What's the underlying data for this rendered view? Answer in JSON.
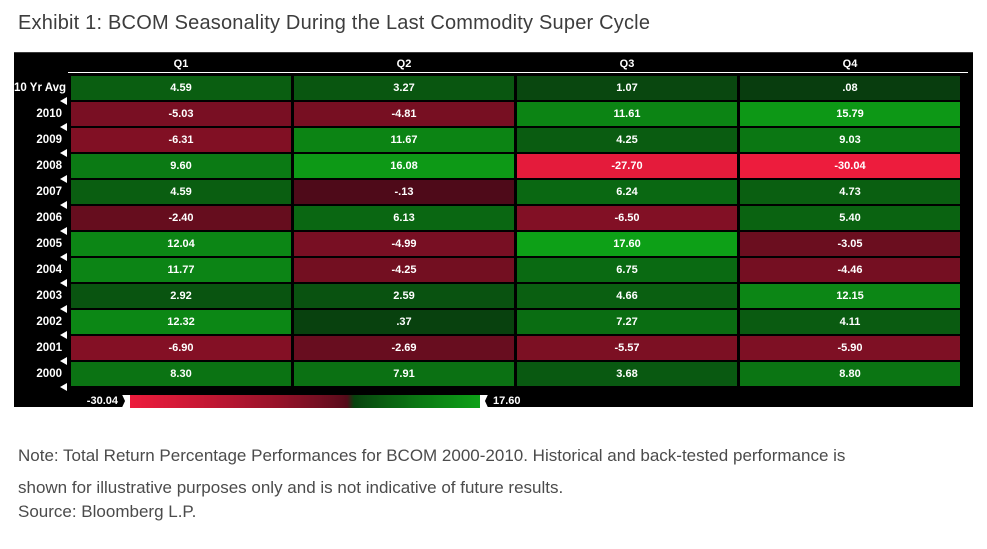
{
  "title": "Exhibit 1: BCOM Seasonality During the Last Commodity Super Cycle",
  "note": {
    "line1": "Note: Total Return Percentage Performances for BCOM 2000-2010. Historical and back-tested performance is",
    "line2": "shown for illustrative purposes only and is not indicative of future results.",
    "full_text": "Note: Total Return Percentage Performances for BCOM 2000-2010. Historical and back-tested performance is shown for illustrative purposes only and is not indicative of future results."
  },
  "source": "Source: Bloomberg L.P.",
  "chart_data": {
    "type": "heatmap",
    "title": "BCOM Seasonality During the Last Commodity Super Cycle",
    "columns": [
      "Q1",
      "Q2",
      "Q3",
      "Q4"
    ],
    "rows": [
      {
        "label": "10 Yr Avg",
        "values": [
          "4.59",
          "3.27",
          "1.07",
          ".08"
        ]
      },
      {
        "label": "2010",
        "values": [
          "-5.03",
          "-4.81",
          "11.61",
          "15.79"
        ]
      },
      {
        "label": "2009",
        "values": [
          "-6.31",
          "11.67",
          "4.25",
          "9.03"
        ]
      },
      {
        "label": "2008",
        "values": [
          "9.60",
          "16.08",
          "-27.70",
          "-30.04"
        ]
      },
      {
        "label": "2007",
        "values": [
          "4.59",
          "-.13",
          "6.24",
          "4.73"
        ]
      },
      {
        "label": "2006",
        "values": [
          "-2.40",
          "6.13",
          "-6.50",
          "5.40"
        ]
      },
      {
        "label": "2005",
        "values": [
          "12.04",
          "-4.99",
          "17.60",
          "-3.05"
        ]
      },
      {
        "label": "2004",
        "values": [
          "11.77",
          "-4.25",
          "6.75",
          "-4.46"
        ]
      },
      {
        "label": "2003",
        "values": [
          "2.92",
          "2.59",
          "4.66",
          "12.15"
        ]
      },
      {
        "label": "2002",
        "values": [
          "12.32",
          ".37",
          "7.27",
          "4.11"
        ]
      },
      {
        "label": "2001",
        "values": [
          "-6.90",
          "-2.69",
          "-5.57",
          "-5.90"
        ]
      },
      {
        "label": "2000",
        "values": [
          "8.30",
          "7.91",
          "3.68",
          "8.80"
        ]
      }
    ],
    "colorbar": {
      "min_label": "-30.04",
      "max_label": "17.60",
      "min_value": -30.04,
      "max_value": 17.6,
      "negative_bright": "#ed1c3d",
      "negative_dark": "#4a0a18",
      "positive_dark": "#083c0e",
      "positive_bright": "#0da017"
    },
    "layout": {
      "legend_position": "bottom",
      "grid": false,
      "panel_bg": "#000000",
      "cell_text_color": "#ffffff"
    }
  },
  "page_colors": {
    "background": "#ffffff",
    "title_text": "#3d3d3d",
    "note_text": "#4b4b4b"
  }
}
